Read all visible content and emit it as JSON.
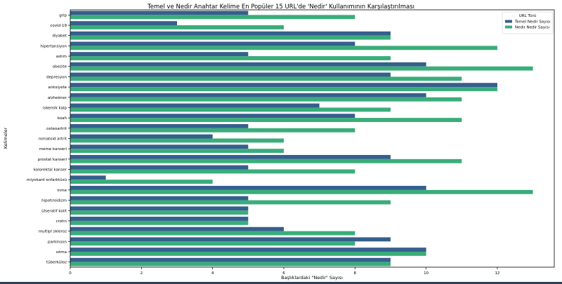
{
  "chart_data": {
    "type": "bar",
    "orientation": "horizontal",
    "title": "Temel ve Nedir Anahtar Kelime En Popüler 15 URL'de 'Nedir' Kullanımının Karşılaştırılması",
    "xlabel": "Başlıklardaki \"Nedir\" Sayısı",
    "ylabel": "Kelimeler",
    "xlim": [
      0,
      13.6
    ],
    "xticks": [
      0,
      2,
      4,
      6,
      8,
      10,
      12
    ],
    "grid": false,
    "legend_title": "URL Türü",
    "legend_position": "top-right",
    "categories": [
      "grip",
      "covid-19",
      "diyabet",
      "hipertansiyon",
      "astım",
      "obezite",
      "depresyon",
      "anksiyete",
      "alzheimer",
      "iskemik kalp",
      "koah",
      "osteoartrit",
      "romatoid artrit",
      "meme kanseri",
      "prostat kanseri",
      "kolorektal kanser",
      "miyokard enfarktüsü",
      "inme",
      "hipotiroidizm",
      "ülseratif kolit",
      "crohn",
      "multipl skleroz",
      "parkinson",
      "sıtma",
      "tüberküloz"
    ],
    "series": [
      {
        "name": "Temel Nedir Sayısı",
        "color": "#355f8d",
        "values": [
          5,
          3,
          9,
          8,
          5,
          10,
          9,
          12,
          10,
          7,
          8,
          5,
          4,
          5,
          9,
          5,
          1,
          10,
          5,
          5,
          5,
          6,
          9,
          10,
          9
        ]
      },
      {
        "name": "Nedir Nedir Sayısı",
        "color": "#3aad7a",
        "values": [
          8,
          6,
          9,
          12,
          9,
          13,
          11,
          12,
          11,
          9,
          11,
          8,
          6,
          6,
          11,
          8,
          4,
          13,
          9,
          5,
          5,
          8,
          8,
          10,
          9
        ]
      }
    ]
  }
}
